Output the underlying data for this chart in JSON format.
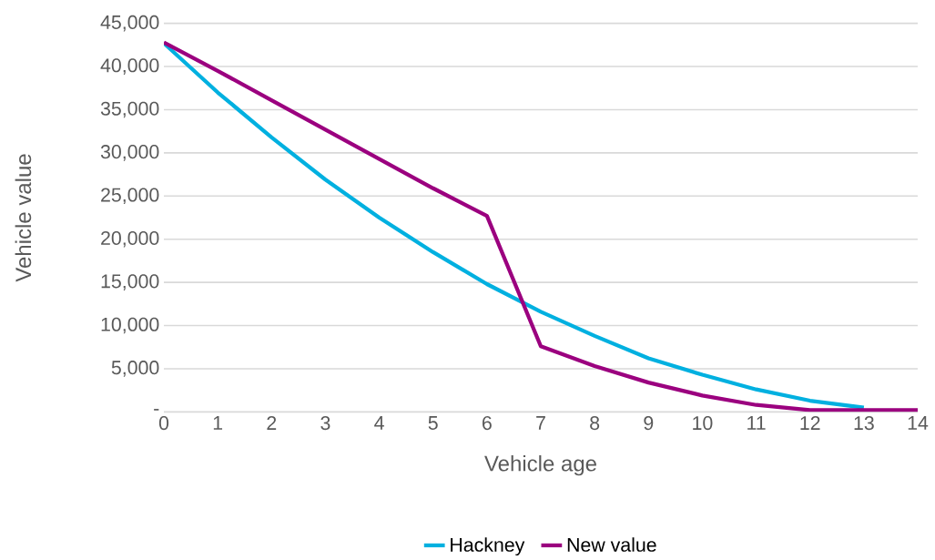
{
  "chart_data": {
    "type": "line",
    "xlabel": "Vehicle age",
    "ylabel": "Vehicle value",
    "x": [
      0,
      1,
      2,
      3,
      4,
      5,
      6,
      7,
      8,
      9,
      10,
      11,
      12,
      13,
      14
    ],
    "series": [
      {
        "name": "Hackney",
        "color": "#00b0e0",
        "values": [
          42700,
          37000,
          31800,
          26900,
          22500,
          18500,
          14800,
          11600,
          8800,
          6200,
          4300,
          2600,
          1300,
          500,
          null
        ]
      },
      {
        "name": "New value",
        "color": "#9b007f",
        "values": [
          42800,
          39500,
          36100,
          32700,
          29300,
          25900,
          22700,
          7600,
          5300,
          3400,
          1900,
          800,
          200,
          200,
          200
        ]
      }
    ],
    "xlim": [
      0,
      14
    ],
    "xticks": [
      0,
      1,
      2,
      3,
      4,
      5,
      6,
      7,
      8,
      9,
      10,
      11,
      12,
      13,
      14
    ],
    "ylim": [
      0,
      45000
    ],
    "yticks": [
      {
        "value": 0,
        "label": "-"
      },
      {
        "value": 5000,
        "label": "5,000"
      },
      {
        "value": 10000,
        "label": "10,000"
      },
      {
        "value": 15000,
        "label": "15,000"
      },
      {
        "value": 20000,
        "label": "20,000"
      },
      {
        "value": 25000,
        "label": "25,000"
      },
      {
        "value": 30000,
        "label": "30,000"
      },
      {
        "value": 35000,
        "label": "35,000"
      },
      {
        "value": 40000,
        "label": "40,000"
      },
      {
        "value": 45000,
        "label": "45,000"
      }
    ],
    "grid": "y",
    "legend": "bottom",
    "marker": "none",
    "line_style": "solid"
  }
}
